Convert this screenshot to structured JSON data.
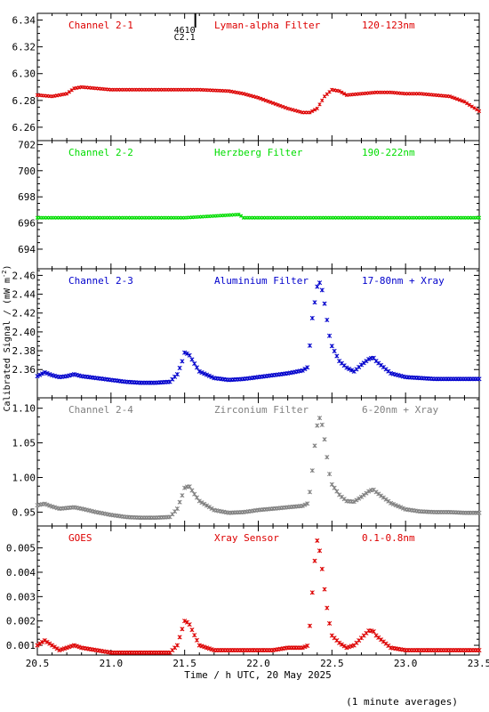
{
  "chart_data": [
    {
      "type": "scatter",
      "title": "Channel 2-1",
      "filter": "Lyman-alpha Filter",
      "band": "120-123nm",
      "color": "#dd0000",
      "ylim": [
        6.25,
        6.345
      ],
      "yticks": [
        "6.26",
        "6.28",
        "6.30",
        "6.32",
        "6.34"
      ],
      "annotation": {
        "label_top": "4610",
        "label_bottom": "C2.1",
        "x": 21.5
      },
      "series": [
        {
          "points": [
            [
              20.5,
              6.284
            ],
            [
              20.6,
              6.283
            ],
            [
              20.7,
              6.285
            ],
            [
              20.75,
              6.289
            ],
            [
              20.8,
              6.29
            ],
            [
              20.9,
              6.289
            ],
            [
              21.0,
              6.288
            ],
            [
              21.2,
              6.288
            ],
            [
              21.4,
              6.288
            ],
            [
              21.6,
              6.288
            ],
            [
              21.8,
              6.287
            ],
            [
              21.9,
              6.285
            ],
            [
              22.0,
              6.282
            ],
            [
              22.1,
              6.278
            ],
            [
              22.2,
              6.274
            ],
            [
              22.3,
              6.271
            ],
            [
              22.35,
              6.271
            ],
            [
              22.4,
              6.274
            ],
            [
              22.45,
              6.283
            ],
            [
              22.5,
              6.288
            ],
            [
              22.55,
              6.287
            ],
            [
              22.6,
              6.284
            ],
            [
              22.7,
              6.285
            ],
            [
              22.8,
              6.286
            ],
            [
              22.9,
              6.286
            ],
            [
              23.0,
              6.285
            ],
            [
              23.1,
              6.285
            ],
            [
              23.2,
              6.284
            ],
            [
              23.3,
              6.283
            ],
            [
              23.4,
              6.279
            ],
            [
              23.5,
              6.272
            ]
          ]
        }
      ]
    },
    {
      "type": "scatter",
      "title": "Channel 2-2",
      "filter": "Herzberg Filter",
      "band": "190-222nm",
      "color": "#00dd00",
      "ylim": [
        692.5,
        702.3
      ],
      "yticks": [
        "694",
        "696",
        "698",
        "700",
        "702"
      ],
      "series": [
        {
          "points": [
            [
              20.5,
              696.4
            ],
            [
              21.0,
              696.4
            ],
            [
              21.5,
              696.4
            ],
            [
              21.87,
              696.65
            ],
            [
              21.9,
              696.4
            ],
            [
              22.0,
              696.4
            ],
            [
              22.5,
              696.4
            ],
            [
              23.0,
              696.4
            ],
            [
              23.5,
              696.4
            ]
          ]
        }
      ]
    },
    {
      "type": "scatter",
      "title": "Channel 2-3",
      "filter": "Aluminium Filter",
      "band": "17-80nm + Xray",
      "color": "#0000cc",
      "ylim": [
        2.33,
        2.467
      ],
      "yticks": [
        "2.36",
        "2.38",
        "2.40",
        "2.42",
        "2.44",
        "2.46"
      ],
      "series": [
        {
          "points": [
            [
              20.5,
              2.353
            ],
            [
              20.55,
              2.357
            ],
            [
              20.6,
              2.354
            ],
            [
              20.65,
              2.352
            ],
            [
              20.7,
              2.353
            ],
            [
              20.75,
              2.355
            ],
            [
              20.8,
              2.353
            ],
            [
              20.9,
              2.351
            ],
            [
              21.0,
              2.349
            ],
            [
              21.1,
              2.347
            ],
            [
              21.2,
              2.346
            ],
            [
              21.3,
              2.346
            ],
            [
              21.4,
              2.347
            ],
            [
              21.45,
              2.355
            ],
            [
              21.48,
              2.367
            ],
            [
              21.5,
              2.378
            ],
            [
              21.53,
              2.376
            ],
            [
              21.56,
              2.368
            ],
            [
              21.6,
              2.358
            ],
            [
              21.7,
              2.351
            ],
            [
              21.8,
              2.349
            ],
            [
              21.9,
              2.35
            ],
            [
              22.0,
              2.352
            ],
            [
              22.1,
              2.354
            ],
            [
              22.2,
              2.356
            ],
            [
              22.3,
              2.359
            ],
            [
              22.34,
              2.363
            ],
            [
              22.36,
              2.408
            ],
            [
              22.38,
              2.428
            ],
            [
              22.4,
              2.448
            ],
            [
              22.42,
              2.453
            ],
            [
              22.44,
              2.44
            ],
            [
              22.46,
              2.42
            ],
            [
              22.48,
              2.398
            ],
            [
              22.5,
              2.385
            ],
            [
              22.55,
              2.369
            ],
            [
              22.6,
              2.362
            ],
            [
              22.65,
              2.358
            ],
            [
              22.7,
              2.365
            ],
            [
              22.75,
              2.371
            ],
            [
              22.78,
              2.373
            ],
            [
              22.8,
              2.369
            ],
            [
              22.9,
              2.356
            ],
            [
              23.0,
              2.352
            ],
            [
              23.1,
              2.351
            ],
            [
              23.2,
              2.35
            ],
            [
              23.3,
              2.35
            ],
            [
              23.4,
              2.35
            ],
            [
              23.5,
              2.35
            ]
          ]
        }
      ]
    },
    {
      "type": "scatter",
      "title": "Channel 2-4",
      "filter": "Zirconium Filter",
      "band": "6-20nm + Xray",
      "color": "#808080",
      "ylim": [
        0.93,
        1.115
      ],
      "yticks": [
        "0.95",
        "1.00",
        "1.05",
        "1.10"
      ],
      "series": [
        {
          "points": [
            [
              20.5,
              0.96
            ],
            [
              20.55,
              0.962
            ],
            [
              20.6,
              0.958
            ],
            [
              20.65,
              0.955
            ],
            [
              20.7,
              0.956
            ],
            [
              20.75,
              0.957
            ],
            [
              20.8,
              0.955
            ],
            [
              20.9,
              0.95
            ],
            [
              21.0,
              0.946
            ],
            [
              21.1,
              0.943
            ],
            [
              21.2,
              0.942
            ],
            [
              21.3,
              0.942
            ],
            [
              21.4,
              0.943
            ],
            [
              21.45,
              0.955
            ],
            [
              21.48,
              0.972
            ],
            [
              21.5,
              0.985
            ],
            [
              21.53,
              0.988
            ],
            [
              21.56,
              0.978
            ],
            [
              21.6,
              0.966
            ],
            [
              21.7,
              0.953
            ],
            [
              21.8,
              0.949
            ],
            [
              21.9,
              0.95
            ],
            [
              22.0,
              0.953
            ],
            [
              22.1,
              0.955
            ],
            [
              22.2,
              0.957
            ],
            [
              22.3,
              0.959
            ],
            [
              22.34,
              0.963
            ],
            [
              22.36,
              0.995
            ],
            [
              22.38,
              1.04
            ],
            [
              22.4,
              1.075
            ],
            [
              22.42,
              1.088
            ],
            [
              22.44,
              1.07
            ],
            [
              22.46,
              1.04
            ],
            [
              22.48,
              1.008
            ],
            [
              22.5,
              0.99
            ],
            [
              22.55,
              0.975
            ],
            [
              22.6,
              0.966
            ],
            [
              22.65,
              0.965
            ],
            [
              22.7,
              0.972
            ],
            [
              22.75,
              0.98
            ],
            [
              22.78,
              0.983
            ],
            [
              22.8,
              0.979
            ],
            [
              22.9,
              0.963
            ],
            [
              23.0,
              0.954
            ],
            [
              23.1,
              0.951
            ],
            [
              23.2,
              0.95
            ],
            [
              23.3,
              0.95
            ],
            [
              23.4,
              0.949
            ],
            [
              23.5,
              0.949
            ]
          ]
        }
      ]
    },
    {
      "type": "scatter",
      "title": "GOES",
      "filter": "Xray Sensor",
      "band": "0.1-0.8nm",
      "color": "#dd0000",
      "ylim": [
        0.0006,
        0.0059
      ],
      "yticks": [
        "0.001",
        "0.002",
        "0.003",
        "0.004",
        "0.005"
      ],
      "series": [
        {
          "points": [
            [
              20.5,
              0.001
            ],
            [
              20.55,
              0.0012
            ],
            [
              20.6,
              0.001
            ],
            [
              20.65,
              0.0008
            ],
            [
              20.7,
              0.0009
            ],
            [
              20.75,
              0.001
            ],
            [
              20.8,
              0.0009
            ],
            [
              20.9,
              0.0008
            ],
            [
              21.0,
              0.0007
            ],
            [
              21.1,
              0.0007
            ],
            [
              21.2,
              0.0007
            ],
            [
              21.3,
              0.0007
            ],
            [
              21.4,
              0.0007
            ],
            [
              21.45,
              0.001
            ],
            [
              21.48,
              0.0016
            ],
            [
              21.5,
              0.002
            ],
            [
              21.53,
              0.0019
            ],
            [
              21.56,
              0.0015
            ],
            [
              21.6,
              0.001
            ],
            [
              21.7,
              0.0008
            ],
            [
              21.8,
              0.0008
            ],
            [
              21.9,
              0.0008
            ],
            [
              22.0,
              0.0008
            ],
            [
              22.1,
              0.0008
            ],
            [
              22.2,
              0.0009
            ],
            [
              22.3,
              0.0009
            ],
            [
              22.34,
              0.001
            ],
            [
              22.36,
              0.0026
            ],
            [
              22.38,
              0.0043
            ],
            [
              22.4,
              0.0053
            ],
            [
              22.42,
              0.0048
            ],
            [
              22.44,
              0.0038
            ],
            [
              22.46,
              0.0028
            ],
            [
              22.48,
              0.002
            ],
            [
              22.5,
              0.0014
            ],
            [
              22.55,
              0.0011
            ],
            [
              22.6,
              0.0009
            ],
            [
              22.65,
              0.001
            ],
            [
              22.7,
              0.0013
            ],
            [
              22.75,
              0.0016
            ],
            [
              22.78,
              0.0016
            ],
            [
              22.8,
              0.0014
            ],
            [
              22.9,
              0.0009
            ],
            [
              23.0,
              0.0008
            ],
            [
              23.1,
              0.0008
            ],
            [
              23.2,
              0.0008
            ],
            [
              23.3,
              0.0008
            ],
            [
              23.4,
              0.0008
            ],
            [
              23.5,
              0.0008
            ]
          ]
        }
      ]
    }
  ],
  "xaxis": {
    "label": "Time / h UTC, 20 May 2025",
    "xlim": [
      20.5,
      23.5
    ],
    "ticks": [
      "20.5",
      "21.0",
      "21.5",
      "22.0",
      "22.5",
      "23.0",
      "23.5"
    ]
  },
  "ylabel": "Calibrated Signal / (mW m",
  "ylabel_sup": "-2",
  "ylabel_close": ")",
  "footnote": "(1 minute averages)"
}
